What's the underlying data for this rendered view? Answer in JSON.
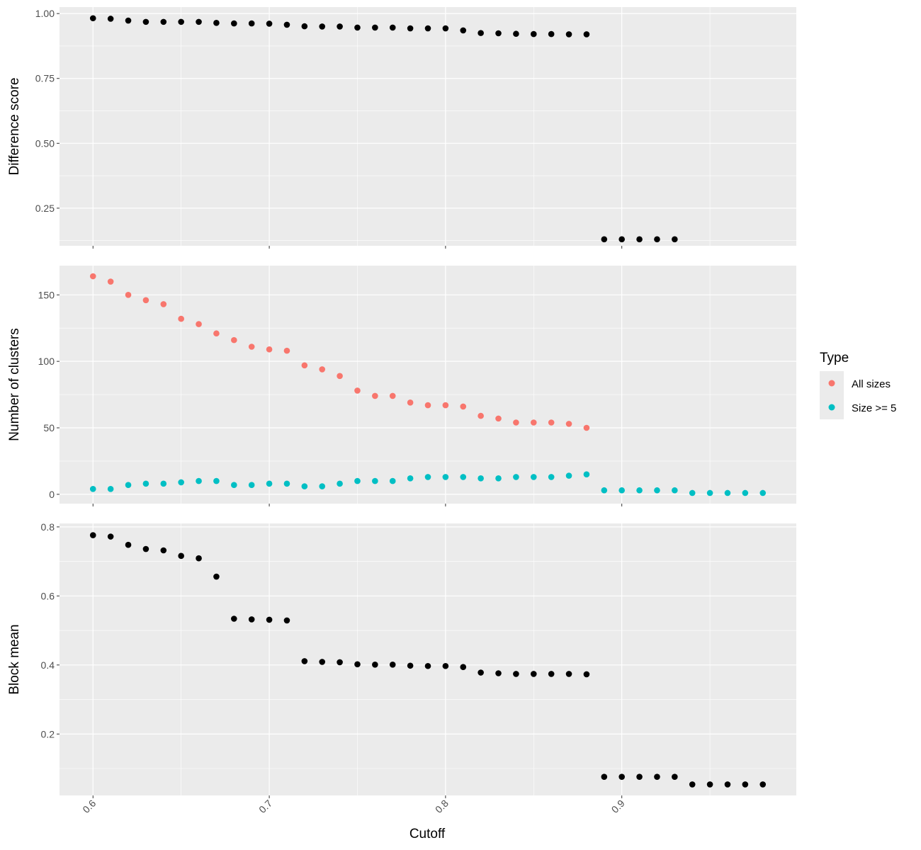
{
  "chart_data": {
    "type": "scatter",
    "xlabel": "Cutoff",
    "x_ticks": [
      {
        "value": 0.6,
        "label": "0.6"
      },
      {
        "value": 0.7,
        "label": "0.7"
      },
      {
        "value": 0.8,
        "label": "0.8"
      },
      {
        "value": 0.9,
        "label": "0.9"
      }
    ],
    "xlim": [
      0.581,
      0.999
    ],
    "grid": true,
    "legend": {
      "title": "Type",
      "placement": "right",
      "entries": [
        {
          "label": "All sizes",
          "color": "#F8766D"
        },
        {
          "label": "Size >= 5",
          "color": "#00BFC4"
        }
      ]
    },
    "panels": [
      {
        "ylabel": "Difference score",
        "ylim": [
          0.105,
          1.025
        ],
        "y_ticks": [
          {
            "value": 0.25,
            "label": "0.25"
          },
          {
            "value": 0.5,
            "label": "0.50"
          },
          {
            "value": 0.75,
            "label": "0.75"
          },
          {
            "value": 1.0,
            "label": "1.00"
          }
        ],
        "series": [
          {
            "color": "#000000",
            "x": [
              0.6,
              0.61,
              0.62,
              0.63,
              0.64,
              0.65,
              0.66,
              0.67,
              0.68,
              0.69,
              0.7,
              0.71,
              0.72,
              0.73,
              0.74,
              0.75,
              0.76,
              0.77,
              0.78,
              0.79,
              0.8,
              0.81,
              0.82,
              0.83,
              0.84,
              0.85,
              0.86,
              0.87,
              0.88,
              0.89,
              0.9,
              0.91,
              0.92,
              0.93
            ],
            "y": [
              0.982,
              0.98,
              0.973,
              0.968,
              0.968,
              0.968,
              0.968,
              0.964,
              0.962,
              0.962,
              0.961,
              0.957,
              0.951,
              0.95,
              0.95,
              0.946,
              0.946,
              0.946,
              0.943,
              0.943,
              0.943,
              0.935,
              0.925,
              0.924,
              0.922,
              0.921,
              0.921,
              0.92,
              0.92,
              0.13,
              0.13,
              0.13,
              0.13,
              0.13
            ]
          }
        ]
      },
      {
        "ylabel": "Number of clusters",
        "ylim": [
          -7,
          172
        ],
        "y_ticks": [
          {
            "value": 0,
            "label": "0"
          },
          {
            "value": 50,
            "label": "50"
          },
          {
            "value": 100,
            "label": "100"
          },
          {
            "value": 150,
            "label": "150"
          }
        ],
        "series": [
          {
            "name": "All sizes",
            "color": "#F8766D",
            "x": [
              0.6,
              0.61,
              0.62,
              0.63,
              0.64,
              0.65,
              0.66,
              0.67,
              0.68,
              0.69,
              0.7,
              0.71,
              0.72,
              0.73,
              0.74,
              0.75,
              0.76,
              0.77,
              0.78,
              0.79,
              0.8,
              0.81,
              0.82,
              0.83,
              0.84,
              0.85,
              0.86,
              0.87,
              0.88
            ],
            "y": [
              164,
              160,
              150,
              146,
              143,
              132,
              128,
              121,
              116,
              111,
              109,
              108,
              97,
              94,
              89,
              78,
              74,
              74,
              69,
              67,
              67,
              66,
              59,
              57,
              54,
              54,
              54,
              53,
              50
            ]
          },
          {
            "name": "Size >= 5",
            "color": "#00BFC4",
            "x": [
              0.6,
              0.61,
              0.62,
              0.63,
              0.64,
              0.65,
              0.66,
              0.67,
              0.68,
              0.69,
              0.7,
              0.71,
              0.72,
              0.73,
              0.74,
              0.75,
              0.76,
              0.77,
              0.78,
              0.79,
              0.8,
              0.81,
              0.82,
              0.83,
              0.84,
              0.85,
              0.86,
              0.87,
              0.88,
              0.89,
              0.9,
              0.91,
              0.92,
              0.93,
              0.94,
              0.95,
              0.96,
              0.97,
              0.98
            ],
            "y": [
              4,
              4,
              7,
              8,
              8,
              9,
              10,
              10,
              7,
              7,
              8,
              8,
              6,
              6,
              8,
              10,
              10,
              10,
              12,
              13,
              13,
              13,
              12,
              12,
              13,
              13,
              13,
              14,
              15,
              3,
              3,
              3,
              3,
              3,
              1,
              1,
              1,
              1,
              1
            ]
          }
        ]
      },
      {
        "ylabel": "Block mean",
        "ylim": [
          0.022,
          0.81
        ],
        "y_ticks": [
          {
            "value": 0.2,
            "label": "0.2"
          },
          {
            "value": 0.4,
            "label": "0.4"
          },
          {
            "value": 0.6,
            "label": "0.6"
          },
          {
            "value": 0.8,
            "label": "0.8"
          }
        ],
        "series": [
          {
            "color": "#000000",
            "x": [
              0.6,
              0.61,
              0.62,
              0.63,
              0.64,
              0.65,
              0.66,
              0.67,
              0.68,
              0.69,
              0.7,
              0.71,
              0.72,
              0.73,
              0.74,
              0.75,
              0.76,
              0.77,
              0.78,
              0.79,
              0.8,
              0.81,
              0.82,
              0.83,
              0.84,
              0.85,
              0.86,
              0.87,
              0.88,
              0.89,
              0.9,
              0.91,
              0.92,
              0.93,
              0.94,
              0.95,
              0.96,
              0.97,
              0.98
            ],
            "y": [
              0.776,
              0.772,
              0.748,
              0.736,
              0.732,
              0.716,
              0.709,
              0.656,
              0.534,
              0.532,
              0.531,
              0.529,
              0.411,
              0.409,
              0.408,
              0.402,
              0.401,
              0.401,
              0.398,
              0.397,
              0.397,
              0.394,
              0.378,
              0.376,
              0.374,
              0.374,
              0.374,
              0.374,
              0.373,
              0.076,
              0.076,
              0.076,
              0.076,
              0.076,
              0.054,
              0.054,
              0.054,
              0.054,
              0.054
            ]
          }
        ]
      }
    ]
  }
}
